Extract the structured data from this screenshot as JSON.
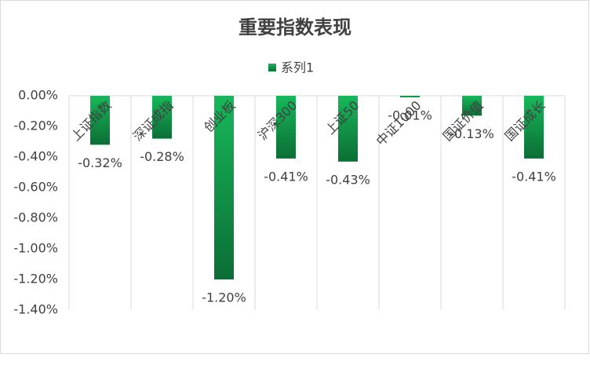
{
  "chart_data": {
    "type": "bar",
    "title": "重要指数表现",
    "categories": [
      "上证指数",
      "深证成指",
      "创业板",
      "沪深300",
      "上证50",
      "中证1000",
      "国证价值",
      "国证成长"
    ],
    "series": [
      {
        "name": "系列1",
        "color": "#17b85a",
        "values": [
          -0.32,
          -0.28,
          -1.2,
          -0.41,
          -0.43,
          -0.01,
          -0.13,
          -0.41
        ],
        "value_labels": [
          "-0.32%",
          "-0.28%",
          "-1.20%",
          "-0.41%",
          "-0.43%",
          "-0.01%",
          "-0.13%",
          "-0.41%"
        ]
      }
    ],
    "ylim": [
      -1.4,
      0
    ],
    "yticks": [
      {
        "value": 0,
        "label": "0.00%"
      },
      {
        "value": -0.2,
        "label": "-0.20%"
      },
      {
        "value": -0.4,
        "label": "-0.40%"
      },
      {
        "value": -0.6,
        "label": "-0.60%"
      },
      {
        "value": -0.8,
        "label": "-0.80%"
      },
      {
        "value": -1.0,
        "label": "-1.00%"
      },
      {
        "value": -1.2,
        "label": "-1.20%"
      },
      {
        "value": -1.4,
        "label": "-1.40%"
      }
    ]
  }
}
